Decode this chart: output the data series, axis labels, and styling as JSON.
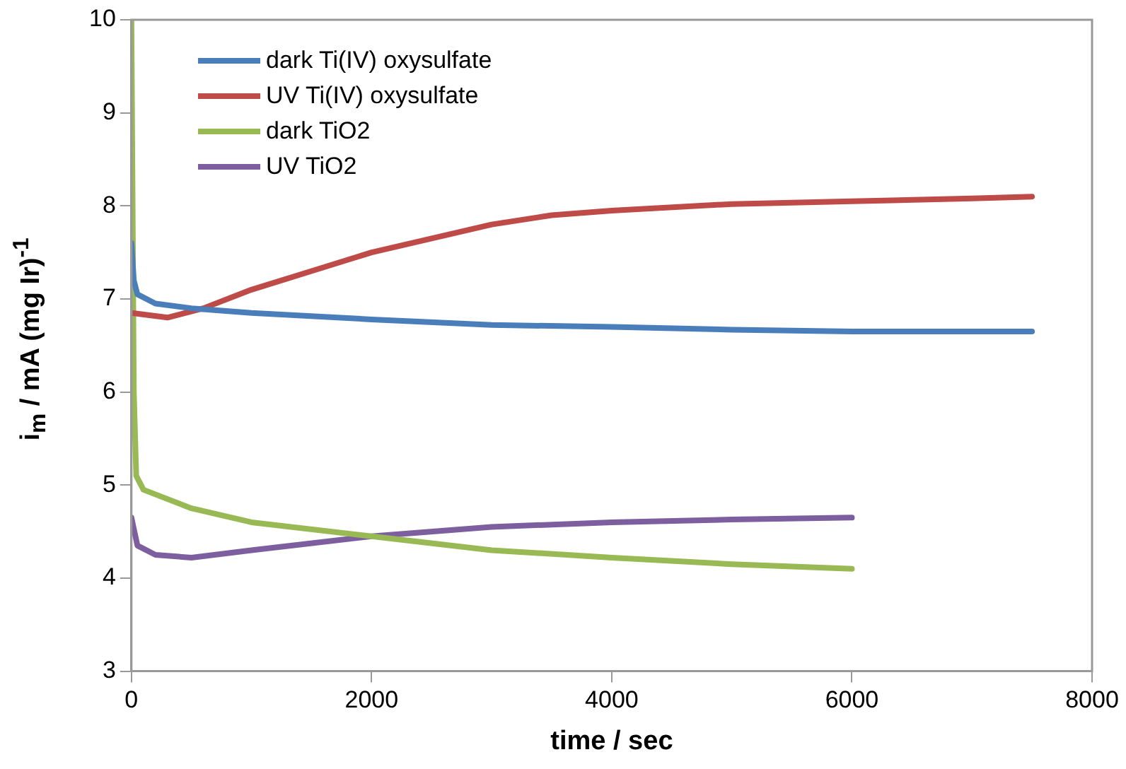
{
  "chart_data": {
    "type": "line",
    "xlabel": "time / sec",
    "ylabel": "i$_{m}$ / mA (mg Ir)$^{-1}$",
    "xlim": [
      0,
      8000
    ],
    "xticks": [
      0,
      2000,
      4000,
      6000,
      8000
    ],
    "ylim": [
      3,
      10
    ],
    "yticks": [
      3,
      4,
      5,
      6,
      7,
      8,
      9,
      10
    ],
    "grid": false,
    "legend": "top left",
    "marker": "none",
    "line_style": "solid",
    "series": [
      {
        "name": "dark Ti(IV) oxysulfate",
        "color": "#4a7ebb",
        "x": [
          0,
          20,
          50,
          200,
          500,
          1000,
          2000,
          3000,
          4000,
          5000,
          6000,
          7000,
          7500
        ],
        "values": [
          7.6,
          7.2,
          7.05,
          6.95,
          6.9,
          6.85,
          6.78,
          6.72,
          6.7,
          6.67,
          6.65,
          6.65,
          6.65
        ]
      },
      {
        "name": "UV Ti(IV) oxysulfate",
        "color": "#be4b48",
        "x": [
          0,
          300,
          600,
          1000,
          1500,
          2000,
          2500,
          3000,
          3500,
          4000,
          5000,
          6000,
          7000,
          7500
        ],
        "values": [
          6.85,
          6.8,
          6.9,
          7.1,
          7.3,
          7.5,
          7.65,
          7.8,
          7.9,
          7.95,
          8.02,
          8.05,
          8.08,
          8.1
        ]
      },
      {
        "name": "dark TiO2",
        "color": "#98b954",
        "x": [
          0,
          20,
          40,
          100,
          500,
          1000,
          2000,
          3000,
          4000,
          5000,
          6000
        ],
        "values": [
          10,
          6,
          5.1,
          4.95,
          4.75,
          4.6,
          4.45,
          4.3,
          4.22,
          4.15,
          4.1
        ]
      },
      {
        "name": "UV TiO2",
        "color": "#7d5fa0",
        "x": [
          0,
          50,
          200,
          500,
          1000,
          2000,
          3000,
          4000,
          5000,
          6000
        ],
        "values": [
          4.65,
          4.35,
          4.25,
          4.22,
          4.3,
          4.45,
          4.55,
          4.6,
          4.63,
          4.65
        ]
      }
    ]
  }
}
